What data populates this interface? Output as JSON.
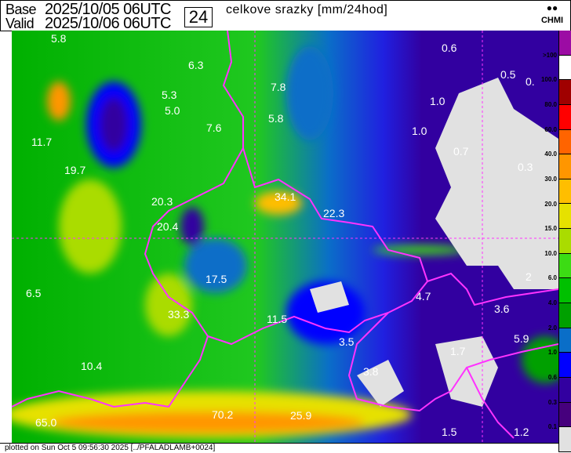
{
  "header": {
    "base_label": "Base",
    "base_time": "2025/10/05 06UTC",
    "valid_label": "Valid",
    "valid_time": "2025/10/06 06UTC",
    "accumulation_hours": "24",
    "title": "celkove srazky [mm/24hod]",
    "logo_text": "CHMI"
  },
  "map": {
    "border_color": "#ff33ff",
    "values": [
      "5.8",
      "6.3",
      "7.8",
      "0.6",
      "0.5",
      "0.",
      "5.3",
      "1.0",
      "5.0",
      "7.6",
      "1.0",
      "5.8",
      "11.7",
      "0.7",
      "0.3",
      "19.7",
      "34.1",
      "20.3",
      "22.3",
      "20.4",
      "17.5",
      "2",
      "6.5",
      "4.7",
      "3.6",
      "33.3",
      "11.5",
      "3.5",
      "5.9",
      "1.7",
      "10.4",
      "3.8",
      "70.2",
      "25.9",
      "65.0",
      "1.5",
      "1.2"
    ]
  },
  "legend": {
    "labels": [
      ">100",
      "100.0",
      "80.0",
      "60.0",
      "40.0",
      "30.0",
      "20.0",
      "15.0",
      "10.0",
      "6.0",
      "4.0",
      "2.0",
      "1.0",
      "0.6",
      "0.3",
      "0.1"
    ],
    "colors": [
      "#9c0ca4",
      "#ffffff",
      "#a00000",
      "#ff0000",
      "#ff6400",
      "#ff9600",
      "#ffbe00",
      "#e6e100",
      "#aadc00",
      "#3cdc14",
      "#00c000",
      "#00a000",
      "#0a6ec8",
      "#0000ff",
      "#3200a0",
      "#46007d",
      "#e1e1e1"
    ]
  },
  "footer": {
    "text": "plotted on Sun Oct  5 09:56:30 2025 [../PFALADLAMB+0024]"
  }
}
